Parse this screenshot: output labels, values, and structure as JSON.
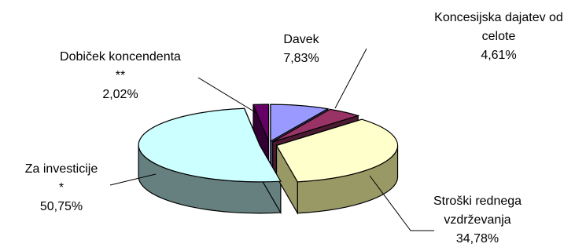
{
  "chart_data": {
    "type": "pie",
    "title": "",
    "style": "3d-exploded",
    "legend": "none",
    "slices": [
      {
        "label_lines": [
          "Davek",
          "7,83%"
        ],
        "value": 7.83,
        "color": "#9999ff",
        "side_color": "#4d4d80"
      },
      {
        "label_lines": [
          "Koncesijska dajatev od",
          "celote",
          "4,61%"
        ],
        "value": 4.61,
        "color": "#993366",
        "side_color": "#4d1a33"
      },
      {
        "label_lines": [
          "Stroški rednega",
          "vzdrževanja",
          "34,78%"
        ],
        "value": 34.78,
        "color": "#ffffcc",
        "side_color": "#999966"
      },
      {
        "label_lines": [
          "Za investicije",
          "*",
          "50,75%"
        ],
        "value": 50.75,
        "color": "#ccffff",
        "side_color": "#668080"
      },
      {
        "label_lines": [
          "Dobiček koncendenta",
          "**",
          "2,02%"
        ],
        "value": 2.02,
        "color": "#660066",
        "side_color": "#330033"
      }
    ]
  }
}
